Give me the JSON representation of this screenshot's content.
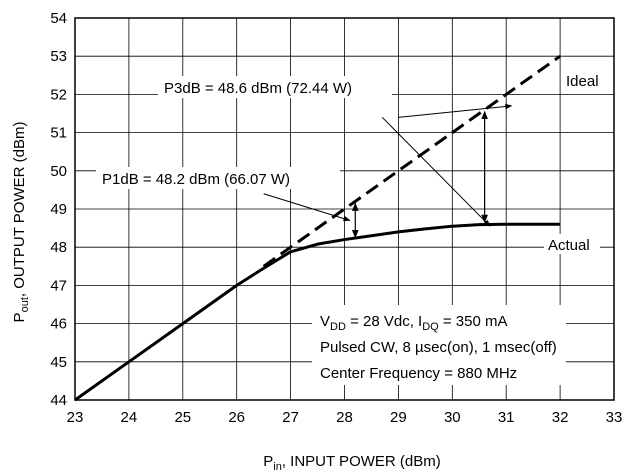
{
  "chart_data": {
    "type": "line",
    "xlabel": {
      "main": "P",
      "sub": "in",
      "rest": ", INPUT POWER (dBm)"
    },
    "ylabel": {
      "main": "P",
      "sub": "out",
      "rest": ", OUTPUT POWER (dBm)"
    },
    "xlim": [
      23,
      33
    ],
    "ylim": [
      44,
      54
    ],
    "xticks": [
      23,
      24,
      25,
      26,
      27,
      28,
      29,
      30,
      31,
      32,
      33
    ],
    "yticks": [
      44,
      45,
      46,
      47,
      48,
      49,
      50,
      51,
      52,
      53,
      54
    ],
    "grid": true,
    "series": [
      {
        "name": "Ideal",
        "style": "dashed",
        "x": [
          26.5,
          32
        ],
        "y": [
          47.5,
          53
        ]
      },
      {
        "name": "Actual",
        "style": "solid",
        "x": [
          23,
          24,
          25,
          26,
          26.5,
          27,
          27.5,
          28,
          28.5,
          29,
          29.5,
          30,
          30.5,
          31,
          31.5,
          32
        ],
        "y": [
          44,
          45,
          46,
          47,
          47.45,
          47.88,
          48.08,
          48.2,
          48.3,
          48.4,
          48.48,
          48.55,
          48.59,
          48.6,
          48.6,
          48.6
        ]
      }
    ],
    "annotations": [
      {
        "name": "p3db",
        "text": "P3dB = 48.6 dBm (72.44 W)",
        "arrows": [
          {
            "from": [
              28.7,
              51.4
            ],
            "to": [
              30.7,
              48.55
            ]
          },
          {
            "from": [
              29.0,
              51.4
            ],
            "to": [
              31.1,
              51.7
            ]
          }
        ],
        "gap": {
          "x": 30.6,
          "y1": 48.6,
          "y2": 51.6
        }
      },
      {
        "name": "p1db",
        "text": "P1dB = 48.2 dBm (66.07 W)",
        "arrows": [
          {
            "from": [
              26.5,
              49.4
            ],
            "to": [
              28.1,
              48.7
            ]
          }
        ],
        "gap": {
          "x": 28.2,
          "y1": 48.2,
          "y2": 49.2
        }
      }
    ],
    "conditions": {
      "line1": {
        "a": "V",
        "a_sub": "DD",
        "b": " = 28 Vdc, I",
        "b_sub": "DQ",
        "c": " = 350 mA"
      },
      "line2": "Pulsed CW, 8 µsec(on), 1 msec(off)",
      "line3": "Center Frequency = 880 MHz"
    }
  }
}
